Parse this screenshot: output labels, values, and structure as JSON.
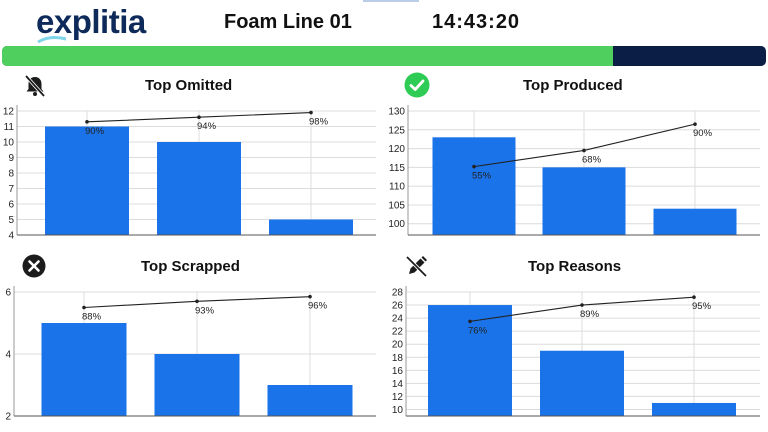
{
  "header": {
    "logo_text": "explitia",
    "line_name": "Foam Line 01",
    "time": "14:43:20"
  },
  "progress": {
    "value": 0.8
  },
  "colors": {
    "bar": "#1a73e8",
    "progress_fill": "#4fd05e",
    "progress_track": "#0b1f46",
    "brand_dark": "#0e2a5a",
    "produced_icon": "#2ecc55"
  },
  "panels": [
    {
      "title": "Top Omitted",
      "icon": "bell-slash-icon",
      "chart_data": {
        "type": "bar",
        "categories": [
          "",
          "",
          ""
        ],
        "values": [
          11,
          10,
          5
        ],
        "cumulative_percent_labels": [
          "90%",
          "94%",
          "98%"
        ],
        "ylim": [
          4,
          12
        ],
        "yticks": [
          4,
          5,
          6,
          7,
          8,
          9,
          10,
          11,
          12
        ],
        "line_y": [
          11.3,
          11.6,
          11.9
        ],
        "grid": true
      }
    },
    {
      "title": "Top Produced",
      "icon": "check-circle-icon",
      "chart_data": {
        "type": "bar",
        "categories": [
          "",
          "",
          ""
        ],
        "values": [
          123,
          115,
          104
        ],
        "cumulative_percent_labels": [
          "55%",
          "68%",
          "90%"
        ],
        "ylim": [
          97,
          130
        ],
        "yticks": [
          100,
          105,
          110,
          115,
          120,
          125,
          130
        ],
        "line_y": [
          115.2,
          119.5,
          126.5
        ],
        "grid": true
      }
    },
    {
      "title": "Top Scrapped",
      "icon": "x-circle-icon",
      "chart_data": {
        "type": "bar",
        "categories": [
          "",
          "",
          ""
        ],
        "values": [
          5,
          4,
          3
        ],
        "cumulative_percent_labels": [
          "88%",
          "93%",
          "96%"
        ],
        "ylim": [
          2,
          6
        ],
        "yticks": [
          2,
          4,
          6
        ],
        "line_y": [
          5.5,
          5.7,
          5.85
        ],
        "grid": true
      }
    },
    {
      "title": "Top Reasons",
      "icon": "pencil-slash-icon",
      "chart_data": {
        "type": "bar",
        "categories": [
          "",
          "",
          ""
        ],
        "values": [
          26,
          19,
          11
        ],
        "cumulative_percent_labels": [
          "76%",
          "89%",
          "95%"
        ],
        "ylim": [
          9,
          28
        ],
        "yticks": [
          10,
          12,
          14,
          16,
          18,
          20,
          22,
          24,
          26,
          28
        ],
        "line_y": [
          23.5,
          26,
          27.2
        ],
        "grid": true
      }
    }
  ]
}
